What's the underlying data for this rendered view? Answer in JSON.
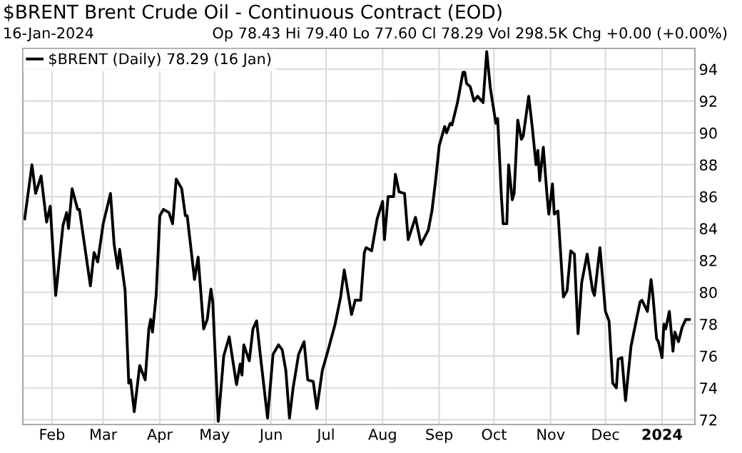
{
  "chart_data": {
    "type": "line",
    "title": "$BRENT Brent Crude Oil - Continuous Contract (EOD)",
    "subtitle": "16-Jan-2024",
    "annotations": [
      "Op 78.43 Hi 79.40 Lo 77.60 Cl 78.29 Vol 298.5K Chg +0.00 (+0.00%)"
    ],
    "x": [
      "2023-01-17",
      "2023-01-21",
      "2023-01-23",
      "2023-01-26",
      "2023-01-29",
      "2023-01-31",
      "2023-02-03",
      "2023-02-07",
      "2023-02-09",
      "2023-02-10",
      "2023-02-12",
      "2023-02-15",
      "2023-02-16",
      "2023-02-19",
      "2023-02-22",
      "2023-02-24",
      "2023-02-26",
      "2023-03-01",
      "2023-03-05",
      "2023-03-07",
      "2023-03-09",
      "2023-03-10",
      "2023-03-13",
      "2023-03-15",
      "2023-03-16",
      "2023-03-18",
      "2023-03-21",
      "2023-03-24",
      "2023-03-26",
      "2023-03-27",
      "2023-03-28",
      "2023-03-30",
      "2023-04-01",
      "2023-04-03",
      "2023-04-06",
      "2023-04-08",
      "2023-04-10",
      "2023-04-13",
      "2023-04-15",
      "2023-04-16",
      "2023-04-20",
      "2023-04-22",
      "2023-04-25",
      "2023-04-27",
      "2023-04-29",
      "2023-04-30",
      "2023-05-03",
      "2023-05-06",
      "2023-05-09",
      "2023-05-13",
      "2023-05-15",
      "2023-05-16",
      "2023-05-17",
      "2023-05-20",
      "2023-05-22",
      "2023-05-24",
      "2023-05-26",
      "2023-05-30",
      "2023-06-02",
      "2023-06-05",
      "2023-06-07",
      "2023-06-09",
      "2023-06-11",
      "2023-06-13",
      "2023-06-16",
      "2023-06-19",
      "2023-06-21",
      "2023-06-24",
      "2023-06-26",
      "2023-06-29",
      "2023-07-02",
      "2023-07-06",
      "2023-07-09",
      "2023-07-11",
      "2023-07-15",
      "2023-07-17",
      "2023-07-20",
      "2023-07-22",
      "2023-07-23",
      "2023-07-26",
      "2023-07-29",
      "2023-08-01",
      "2023-08-02",
      "2023-08-04",
      "2023-08-07",
      "2023-08-08",
      "2023-08-10",
      "2023-08-13",
      "2023-08-15",
      "2023-08-19",
      "2023-08-22",
      "2023-08-26",
      "2023-08-28",
      "2023-08-30",
      "2023-09-01",
      "2023-09-04",
      "2023-09-05",
      "2023-09-07",
      "2023-09-08",
      "2023-09-11",
      "2023-09-14",
      "2023-09-15",
      "2023-09-16",
      "2023-09-18",
      "2023-09-20",
      "2023-09-22",
      "2023-09-25",
      "2023-09-27",
      "2023-09-29",
      "2023-10-02",
      "2023-10-03",
      "2023-10-05",
      "2023-10-06",
      "2023-10-08",
      "2023-10-09",
      "2023-10-11",
      "2023-10-12",
      "2023-10-14",
      "2023-10-16",
      "2023-10-17",
      "2023-10-20",
      "2023-10-22",
      "2023-10-24",
      "2023-10-25",
      "2023-10-26",
      "2023-10-28",
      "2023-10-30",
      "2023-10-31",
      "2023-11-02",
      "2023-11-03",
      "2023-11-05",
      "2023-11-08",
      "2023-11-10",
      "2023-11-12",
      "2023-11-14",
      "2023-11-16",
      "2023-11-18",
      "2023-11-21",
      "2023-11-24",
      "2023-11-25",
      "2023-11-28",
      "2023-12-01",
      "2023-12-03",
      "2023-12-05",
      "2023-12-07",
      "2023-12-08",
      "2023-12-10",
      "2023-12-12",
      "2023-12-15",
      "2023-12-18",
      "2023-12-20",
      "2023-12-21",
      "2023-12-24",
      "2023-12-26",
      "2023-12-27",
      "2023-12-29",
      "2023-12-30",
      "2024-01-01",
      "2024-01-02",
      "2024-01-03",
      "2024-01-05",
      "2024-01-07",
      "2024-01-08",
      "2024-01-10",
      "2024-01-12",
      "2024-01-14",
      "2024-01-16"
    ],
    "series": [
      {
        "name": "$BRENT (Daily) 78.29 (16 Jan)",
        "color": "#000000",
        "values": [
          84.6,
          88.0,
          86.2,
          87.3,
          84.4,
          85.4,
          79.8,
          84.2,
          85.0,
          84.0,
          86.5,
          85.2,
          85.2,
          82.8,
          80.4,
          82.5,
          81.9,
          84.3,
          86.2,
          83.0,
          81.5,
          82.7,
          80.1,
          74.3,
          74.5,
          72.5,
          75.4,
          74.5,
          77.7,
          78.3,
          77.5,
          79.8,
          84.8,
          85.2,
          85.0,
          84.3,
          87.1,
          86.5,
          84.8,
          84.8,
          80.8,
          82.2,
          77.7,
          78.3,
          80.2,
          79.4,
          71.9,
          76.0,
          77.2,
          74.2,
          75.5,
          74.8,
          76.7,
          75.7,
          77.7,
          78.2,
          76.1,
          72.1,
          76.1,
          76.7,
          76.4,
          75.1,
          72.1,
          74.0,
          76.1,
          76.9,
          74.5,
          74.4,
          72.7,
          75.1,
          76.3,
          78.0,
          79.7,
          81.4,
          78.6,
          79.5,
          79.5,
          82.5,
          82.8,
          82.6,
          84.6,
          85.7,
          83.3,
          86.0,
          86.0,
          87.4,
          86.3,
          86.2,
          83.3,
          84.7,
          83.0,
          83.9,
          85.1,
          87.0,
          89.2,
          90.4,
          90.0,
          90.6,
          90.5,
          91.9,
          93.8,
          93.8,
          93.1,
          92.9,
          92.0,
          92.3,
          91.9,
          95.1,
          92.8,
          90.6,
          90.9,
          86.1,
          84.3,
          84.3,
          88.0,
          85.8,
          86.2,
          90.8,
          89.6,
          89.8,
          92.3,
          90.3,
          88.0,
          88.9,
          87.0,
          89.1,
          86.1,
          84.9,
          86.8,
          84.9,
          85.1,
          79.7,
          80.1,
          82.6,
          82.4,
          77.4,
          80.6,
          82.4,
          80.1,
          79.8,
          82.8,
          78.8,
          78.2,
          74.3,
          74.0,
          75.8,
          75.9,
          73.2,
          76.6,
          78.3,
          79.4,
          79.5,
          78.8,
          80.8,
          79.8,
          77.1,
          76.9,
          75.9,
          78.0,
          77.7,
          78.8,
          76.3,
          77.5,
          76.9,
          77.8,
          78.3,
          78.29
        ]
      }
    ],
    "xlim": [
      "2023-01-16",
      "2024-01-19"
    ],
    "xticks": [
      {
        "value": "2023-02-01",
        "label": "Feb"
      },
      {
        "value": "2023-03-01",
        "label": "Mar"
      },
      {
        "value": "2023-04-01",
        "label": "Apr"
      },
      {
        "value": "2023-05-01",
        "label": "May"
      },
      {
        "value": "2023-06-01",
        "label": "Jun"
      },
      {
        "value": "2023-07-01",
        "label": "Jul"
      },
      {
        "value": "2023-08-01",
        "label": "Aug"
      },
      {
        "value": "2023-09-01",
        "label": "Sep"
      },
      {
        "value": "2023-10-01",
        "label": "Oct"
      },
      {
        "value": "2023-11-01",
        "label": "Nov"
      },
      {
        "value": "2023-12-01",
        "label": "Dec"
      },
      {
        "value": "2024-01-01",
        "label": "2024"
      }
    ],
    "ylim": [
      71.7,
      95.3
    ],
    "yticks": [
      72,
      74,
      76,
      78,
      80,
      82,
      84,
      86,
      88,
      90,
      92,
      94
    ],
    "grid": true,
    "legend": "top left",
    "marker": "none",
    "line_style": "solid"
  }
}
